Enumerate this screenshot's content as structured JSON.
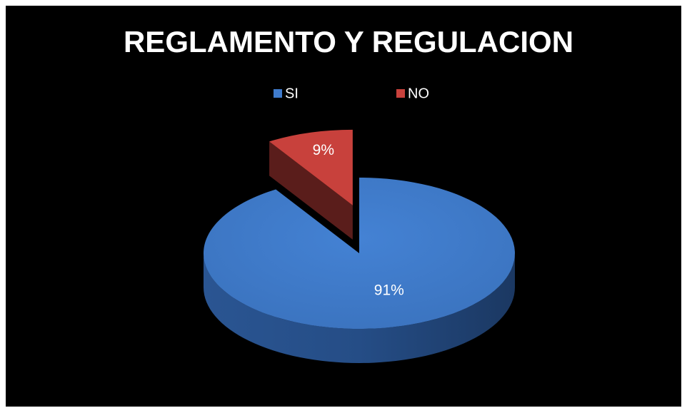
{
  "chart_data": {
    "type": "pie",
    "title": "REGLAMENTO Y REGULACION",
    "categories": [
      "SI",
      "NO"
    ],
    "values": [
      91,
      9
    ],
    "value_labels": [
      "91%",
      "9%"
    ],
    "colors": [
      "#3f7bcc",
      "#c8413c"
    ],
    "legend": "top"
  }
}
